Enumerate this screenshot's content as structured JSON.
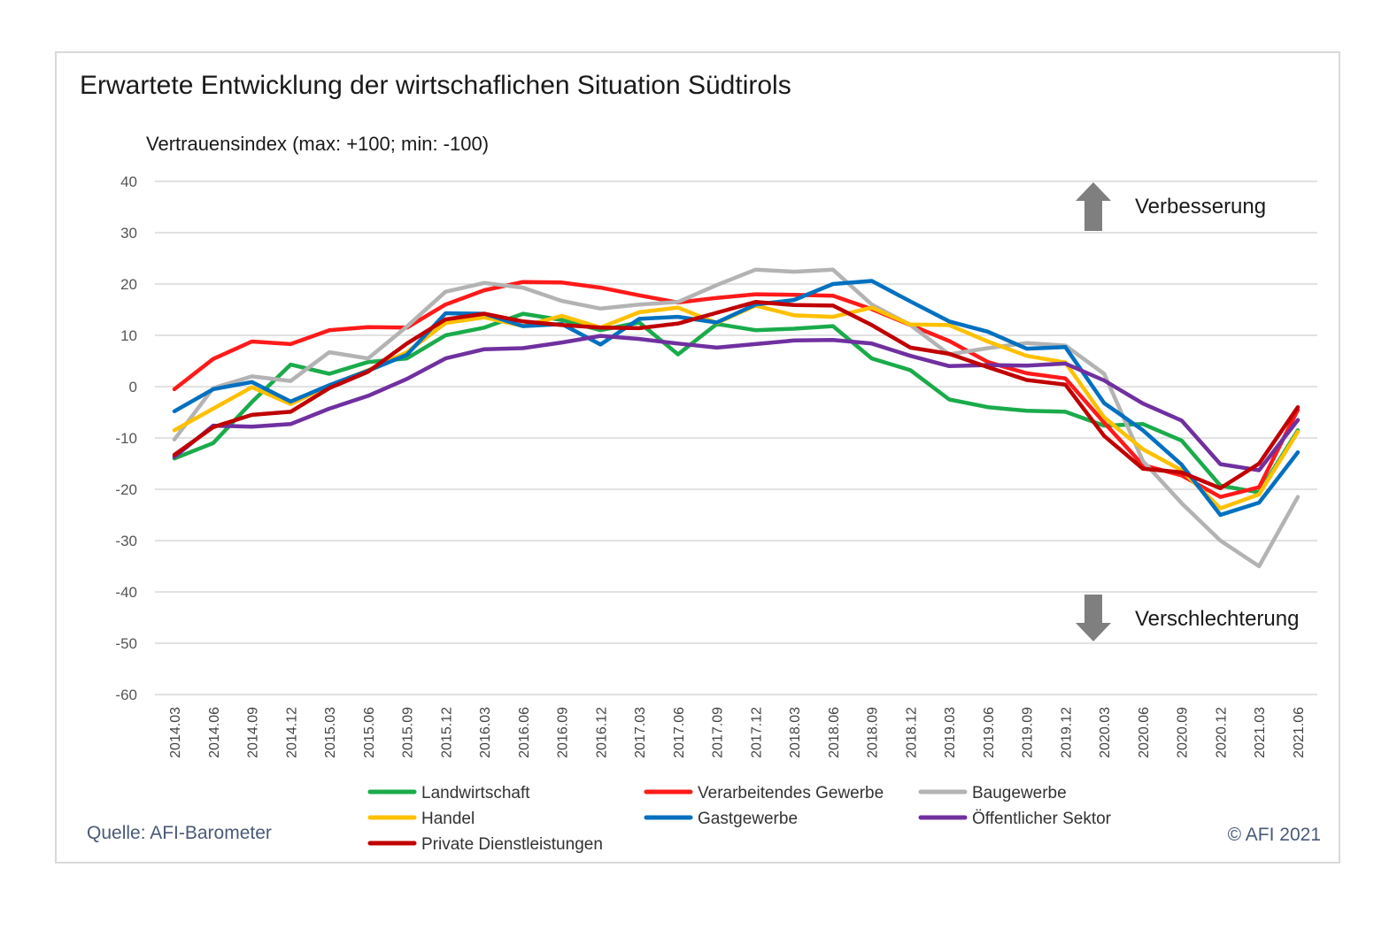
{
  "chart_data": {
    "type": "line",
    "title": "Erwartete Entwicklung der wirtschaflichen Situation Südtirols",
    "ylabel": "Vertrauensindex (max: +100; min: -100)",
    "xlabel": "",
    "ylim": [
      -60,
      40
    ],
    "yticks": [
      40,
      30,
      20,
      10,
      0,
      -10,
      -20,
      -30,
      -40,
      -50,
      -60
    ],
    "grid": true,
    "legend_position": "bottom",
    "categories": [
      "2014.03",
      "2014.06",
      "2014.09",
      "2014.12",
      "2015.03",
      "2015.06",
      "2015.09",
      "2015.12",
      "2016.03",
      "2016.06",
      "2016.09",
      "2016.12",
      "2017.03",
      "2017.06",
      "2017.09",
      "2017.12",
      "2018.03",
      "2018.06",
      "2018.09",
      "2018.12",
      "2019.03",
      "2019.06",
      "2019.09",
      "2019.12",
      "2020.03",
      "2020.06",
      "2020.09",
      "2020.12",
      "2021.03",
      "2021.06"
    ],
    "series": [
      {
        "name": "Landwirtschaft",
        "color": "#1aab4b",
        "values": [
          -14,
          -11,
          -3,
          4.3,
          2.5,
          4.8,
          5.5,
          10,
          11.5,
          14.2,
          13,
          11,
          12.5,
          6.3,
          12.2,
          11,
          11.3,
          11.8,
          5.5,
          3.2,
          -2.5,
          -4,
          -4.7,
          -4.9,
          -7.6,
          -7.3,
          -10.5,
          -19.3,
          -20.6,
          -8.5
        ]
      },
      {
        "name": "Verarbeitendes Gewerbe",
        "color": "#ff1a1a",
        "values": [
          -0.5,
          5.4,
          8.8,
          8.3,
          11,
          11.6,
          11.5,
          16,
          18.8,
          20.4,
          20.3,
          19.3,
          17.8,
          16.4,
          17.3,
          18,
          17.9,
          17.7,
          15.1,
          12,
          8.9,
          4.8,
          2.6,
          1.6,
          -7,
          -15.3,
          -17.3,
          -21.5,
          -19.6,
          -4.5
        ]
      },
      {
        "name": "Baugewerbe",
        "color": "#b3b3b3",
        "values": [
          -10.3,
          -0.3,
          2,
          1.1,
          6.7,
          5.5,
          11.7,
          18.5,
          20.2,
          19.3,
          16.7,
          15.2,
          16,
          16.5,
          19.8,
          22.8,
          22.4,
          22.8,
          16,
          12,
          6.3,
          7.5,
          8.5,
          8,
          2.5,
          -14.5,
          -22.7,
          -30,
          -35,
          -21.5
        ]
      },
      {
        "name": "Handel",
        "color": "#ffc000",
        "values": [
          -8.5,
          -4.3,
          -0.1,
          -3.4,
          0.2,
          3.2,
          6.7,
          12.4,
          13.5,
          11.8,
          13.8,
          11.5,
          14.5,
          15.4,
          12.4,
          15.8,
          13.9,
          13.6,
          15.4,
          12.1,
          12,
          8.8,
          6,
          4.7,
          -6,
          -12.2,
          -16.3,
          -23.7,
          -21,
          -8.8
        ]
      },
      {
        "name": "Gastgewerbe",
        "color": "#0070c0",
        "values": [
          -4.8,
          -0.5,
          0.9,
          -2.9,
          0.3,
          3.1,
          6.2,
          14.3,
          14.2,
          11.8,
          12.2,
          8.2,
          13.2,
          13.6,
          12.5,
          16,
          16.9,
          20,
          20.6,
          16.6,
          12.7,
          10.7,
          7.4,
          7.7,
          -3.2,
          -8.5,
          -15.2,
          -25,
          -22.6,
          -12.8
        ]
      },
      {
        "name": "Öffentlicher Sektor",
        "color": "#7030a0",
        "values": [
          -13.7,
          -7.6,
          -7.8,
          -7.3,
          -4.3,
          -1.8,
          1.5,
          5.5,
          7.3,
          7.5,
          8.6,
          9.9,
          9.3,
          8.4,
          7.6,
          8.3,
          9,
          9.1,
          8.4,
          6,
          4,
          4.2,
          4.1,
          4.5,
          1.2,
          -3.3,
          -6.6,
          -15.1,
          -16.3,
          -6.5
        ]
      },
      {
        "name": "Private Dienstleistungen",
        "color": "#c00000",
        "values": [
          -13.3,
          -7.9,
          -5.5,
          -4.9,
          -0.3,
          2.9,
          8.4,
          13.1,
          14.2,
          12.7,
          12,
          11.5,
          11.4,
          12.3,
          14.4,
          16.5,
          15.9,
          15.8,
          12,
          7.6,
          6.4,
          3.8,
          1.3,
          0.4,
          -9.6,
          -16,
          -16.7,
          -19.8,
          -15,
          -4
        ]
      }
    ]
  },
  "annotations": {
    "up_label": "Verbesserung",
    "down_label": "Verschlechterung"
  },
  "footer": {
    "source": "Quelle: AFI-Barometer",
    "copyright": "© AFI 2021"
  },
  "colors": {
    "grid": "#d9d9d9",
    "arrow": "#7f7f7f",
    "footer_text": "#4a5a78"
  }
}
